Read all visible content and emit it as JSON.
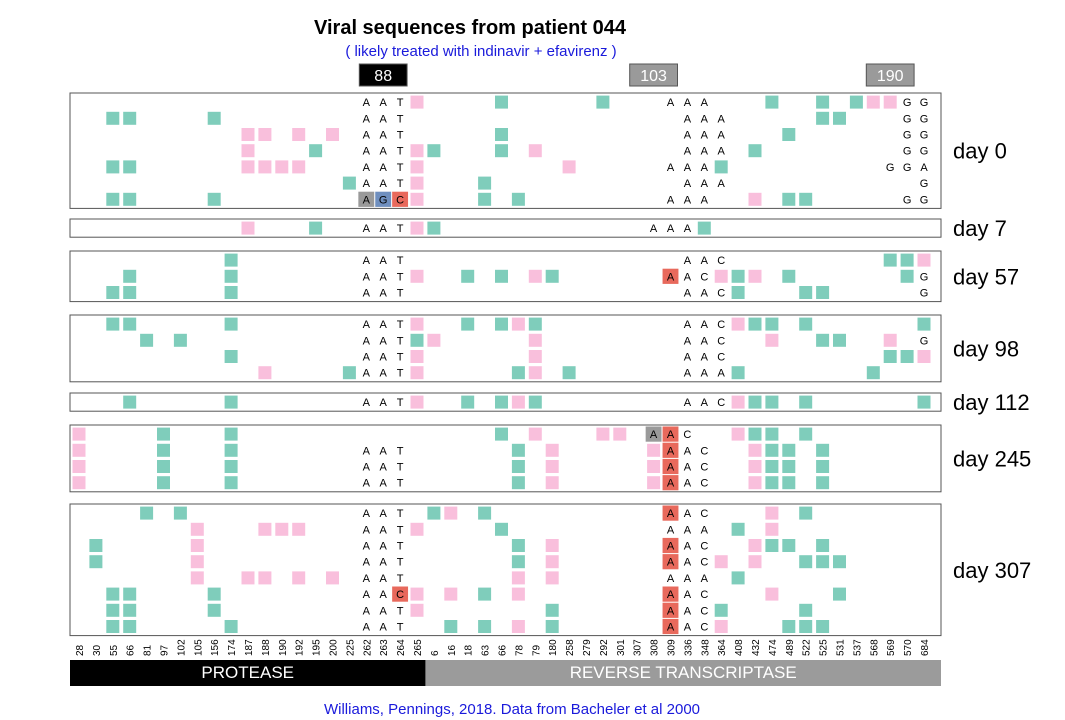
{
  "title": "Viral sequences from patient 044",
  "subtitle": "( likely treated with indinavir + efavirenz )",
  "footer": "Williams, Pennings, 2018. Data from Bacheler et al 2000",
  "colors": {
    "teal": "#7fcdbb",
    "pink": "#f9bfdc",
    "gray_box": "#9a9a9a",
    "red_box": "#e8695c",
    "blue_box": "#6f8fbf",
    "purple_box": "#b3b3e6",
    "title_color": "#000000",
    "subtitle_color": "#1a1adb",
    "footer_color": "#1a1adb",
    "protease_bar": "#000000",
    "rt_bar": "#9b9b9b"
  },
  "chart_data": {
    "type": "table",
    "positions": [
      "28",
      "30",
      "55",
      "66",
      "81",
      "97",
      "102",
      "105",
      "156",
      "174",
      "187",
      "188",
      "190",
      "192",
      "195",
      "200",
      "225",
      "262",
      "263",
      "264",
      "265",
      "6",
      "16",
      "18",
      "63",
      "66",
      "78",
      "79",
      "180",
      "258",
      "279",
      "292",
      "301",
      "307",
      "308",
      "309",
      "336",
      "348",
      "364",
      "408",
      "432",
      "474",
      "489",
      "522",
      "525",
      "531",
      "537",
      "568",
      "569",
      "570",
      "684"
    ],
    "genes": [
      {
        "name": "PROTEASE",
        "start": 0,
        "end": 20
      },
      {
        "name": "REVERSE TRANSCRIPTASE",
        "start": 21,
        "end": 50
      }
    ],
    "codons": [
      {
        "label": "88",
        "columns": [
          17,
          18,
          19
        ],
        "header_style": "black"
      },
      {
        "label": "103",
        "columns": [
          33,
          34,
          35
        ],
        "header_style": "gray"
      },
      {
        "label": "190",
        "columns": [
          47,
          48,
          49
        ],
        "header_style": "gray"
      }
    ],
    "legend": {
      "t": "teal",
      "p": "pink"
    },
    "days": [
      {
        "label": "day 0",
        "rows": [
          {
            "cells": "-----------------AATp----t-----t---AAA---t--t-tppGGAt",
            "special": []
          },
          {
            "cells": "--tt----t--------AAT----------------AAA-----tt---GGA-",
            "special": []
          },
          {
            "cells": "----------pp-p-p-AAT-----t----------AAA---t------GGA-",
            "special": []
          },
          {
            "cells": "----------p---t--AATpt---t-p--------AAA-t--------GGA-",
            "special": []
          },
          {
            "cells": "--tt------pppp---AATp--------p-----AAAt---------GGAt",
            "special": []
          },
          {
            "cells": "----------------tAATp---t-----------AAA-----------GGA-",
            "special": []
          },
          {
            "cells": "--tt----t--------AGCp---t-t--------AAA--p-tt-----GGA-",
            "special": [
              {
                "col": 17,
                "color": "gray_box"
              },
              {
                "col": 18,
                "color": "blue_box"
              },
              {
                "col": 19,
                "color": "red_box"
              }
            ]
          }
        ]
      },
      {
        "label": "day 7",
        "rows": [
          {
            "cells": "----------p---t--AATpt------------AAAt-------------GGA-",
            "special": []
          }
        ]
      },
      {
        "label": "day 57",
        "rows": [
          {
            "cells": "---------t-------AAT----------------AAC---------ttp-GGA-",
            "special": [
              {
                "col": 33,
                "color": "gray_box"
              },
              {
                "col": 34,
                "color": "gray_box"
              },
              {
                "col": 35,
                "color": "red_box"
              }
            ]
          },
          {
            "cells": "---t-----t-------AATp--t-t-pt------AACptp-t------tGGAt",
            "special": [
              {
                "col": 33,
                "color": "gray_box"
              },
              {
                "col": 34,
                "color": "gray_box"
              },
              {
                "col": 35,
                "color": "red_box"
              }
            ]
          },
          {
            "cells": "--tt-----t-------AAT----------------AACt---tt-----GGA-",
            "special": [
              {
                "col": 33,
                "color": "gray_box"
              },
              {
                "col": 34,
                "color": "gray_box"
              },
              {
                "col": 35,
                "color": "red_box"
              }
            ]
          }
        ]
      },
      {
        "label": "day 98",
        "rows": [
          {
            "cells": "--tt-----t-------AATp--t-tpt--------AACptt-t------tGGAt",
            "special": [
              {
                "col": 33,
                "color": "gray_box"
              },
              {
                "col": 34,
                "color": "gray_box"
              },
              {
                "col": 35,
                "color": "red_box"
              }
            ]
          },
          {
            "cells": "----t-t----------AATtp-----p--------AAC--p--tt--p-GGAt",
            "special": [
              {
                "col": 33,
                "color": "gray_box"
              },
              {
                "col": 34,
                "color": "gray_box"
              },
              {
                "col": 35,
                "color": "red_box"
              }
            ]
          },
          {
            "cells": "---------t-------AATp------p--------AAC---------ttp-GGA-",
            "special": [
              {
                "col": 33,
                "color": "gray_box"
              },
              {
                "col": 34,
                "color": "gray_box"
              },
              {
                "col": 35,
                "color": "red_box"
              }
            ]
          },
          {
            "cells": "-----------p----tAATp-----tp-t------AAAt-------t---AGC-",
            "special": [
              {
                "col": 47,
                "color": "purple_box"
              },
              {
                "col": 48,
                "color": "gray_box"
              },
              {
                "col": 49,
                "color": "red_box"
              }
            ]
          }
        ]
      },
      {
        "label": "day 112",
        "rows": [
          {
            "cells": "---t-----t-------AATp--t-tpt--------AACptt-t------tGGAt",
            "special": [
              {
                "col": 33,
                "color": "gray_box"
              },
              {
                "col": 34,
                "color": "gray_box"
              },
              {
                "col": 35,
                "color": "red_box"
              }
            ]
          }
        ]
      },
      {
        "label": "day 245",
        "rows": [
          {
            "cells": "p----t---t---------------t-p---pp-AAC--ptt-t-------GGA-",
            "special": [
              {
                "col": 33,
                "color": "gray_box"
              },
              {
                "col": 34,
                "color": "gray_box"
              },
              {
                "col": 35,
                "color": "red_box"
              }
            ]
          },
          {
            "cells": "p----t---t-------AAT------t-p-----pAAC--ptt-t------GGA-",
            "special": [
              {
                "col": 33,
                "color": "gray_box"
              },
              {
                "col": 34,
                "color": "gray_box"
              },
              {
                "col": 35,
                "color": "red_box"
              }
            ]
          },
          {
            "cells": "p----t---t-------AAT------t-p-----pAAC--ptt-t------GGA-",
            "special": [
              {
                "col": 33,
                "color": "gray_box"
              },
              {
                "col": 34,
                "color": "gray_box"
              },
              {
                "col": 35,
                "color": "red_box"
              }
            ]
          },
          {
            "cells": "p----t---t-------AAT------t-p-----pAAC--ptt-t------GGA-",
            "special": [
              {
                "col": 33,
                "color": "gray_box"
              },
              {
                "col": 34,
                "color": "gray_box"
              },
              {
                "col": 35,
                "color": "red_box"
              }
            ]
          }
        ]
      },
      {
        "label": "day 307",
        "rows": [
          {
            "cells": "----t-t----------AAT-tp-t----------AAC---p-t-------tGGAt",
            "special": [
              {
                "col": 33,
                "color": "gray_box"
              },
              {
                "col": 34,
                "color": "gray_box"
              },
              {
                "col": 35,
                "color": "red_box"
              }
            ]
          },
          {
            "cells": "-------p---ppp---AATp----t---------AAA-t-p---------GGA-",
            "special": []
          },
          {
            "cells": "-t-----p---------AAT------t-p------AAC--ptt-t------GGA-",
            "special": [
              {
                "col": 33,
                "color": "gray_box"
              },
              {
                "col": 34,
                "color": "gray_box"
              },
              {
                "col": 35,
                "color": "red_box"
              }
            ]
          },
          {
            "cells": "-t-----p---------AAT------t-p------AACp-p--ttt------GGAt",
            "special": [
              {
                "col": 33,
                "color": "gray_box"
              },
              {
                "col": 34,
                "color": "gray_box"
              },
              {
                "col": 35,
                "color": "red_box"
              }
            ]
          },
          {
            "cells": "-------p--pp-p-p-AAT------p-p------AAA-t------------GGA-",
            "special": []
          },
          {
            "cells": "--tt----t--------AACp-p-t-p--------AAC---p---t-----tGGAt",
            "special": [
              {
                "col": 19,
                "color": "red_box"
              },
              {
                "col": 33,
                "color": "gray_box"
              },
              {
                "col": 34,
                "color": "gray_box"
              },
              {
                "col": 35,
                "color": "red_box"
              }
            ]
          },
          {
            "cells": "--tt----t--------AATp-------t------AACt----t-------GGA-",
            "special": [
              {
                "col": 33,
                "color": "gray_box"
              },
              {
                "col": 34,
                "color": "gray_box"
              },
              {
                "col": 35,
                "color": "red_box"
              }
            ]
          },
          {
            "cells": "--tt-----t-------AAT--t-t-p-t------AACp---ttt------tGGAt",
            "special": [
              {
                "col": 33,
                "color": "gray_box"
              },
              {
                "col": 34,
                "color": "gray_box"
              },
              {
                "col": 35,
                "color": "red_box"
              }
            ]
          }
        ]
      }
    ]
  }
}
